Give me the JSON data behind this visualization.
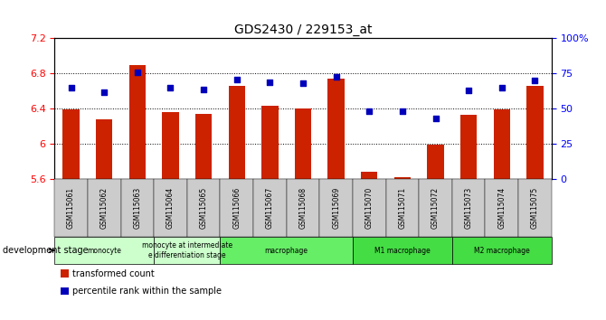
{
  "title": "GDS2430 / 229153_at",
  "samples": [
    "GSM115061",
    "GSM115062",
    "GSM115063",
    "GSM115064",
    "GSM115065",
    "GSM115066",
    "GSM115067",
    "GSM115068",
    "GSM115069",
    "GSM115070",
    "GSM115071",
    "GSM115072",
    "GSM115073",
    "GSM115074",
    "GSM115075"
  ],
  "bar_values": [
    6.39,
    6.28,
    6.9,
    6.36,
    6.34,
    6.66,
    6.43,
    6.4,
    6.74,
    5.68,
    5.62,
    5.99,
    6.33,
    6.39,
    6.66
  ],
  "dot_values": [
    65,
    62,
    76,
    65,
    64,
    71,
    69,
    68,
    73,
    48,
    48,
    43,
    63,
    65,
    70
  ],
  "ylim_left": [
    5.6,
    7.2
  ],
  "ylim_right": [
    0,
    100
  ],
  "yticks_left": [
    5.6,
    6.0,
    6.4,
    6.8,
    7.2
  ],
  "yticks_right": [
    0,
    25,
    50,
    75,
    100
  ],
  "ytick_labels_left": [
    "5.6",
    "6",
    "6.4",
    "6.8",
    "7.2"
  ],
  "ytick_labels_right": [
    "0",
    "25",
    "50",
    "75",
    "100%"
  ],
  "bar_color": "#cc2200",
  "dot_color": "#0000bb",
  "background_color": "#ffffff",
  "group_defs": [
    {
      "label": "monocyte",
      "start": 0,
      "end": 2,
      "color": "#ccffcc"
    },
    {
      "label": "monocyte at intermediate\ne differentiation stage",
      "start": 3,
      "end": 4,
      "color": "#ccffcc"
    },
    {
      "label": "macrophage",
      "start": 5,
      "end": 8,
      "color": "#66ee66"
    },
    {
      "label": "M1 macrophage",
      "start": 9,
      "end": 11,
      "color": "#44dd44"
    },
    {
      "label": "M2 macrophage",
      "start": 12,
      "end": 14,
      "color": "#44dd44"
    }
  ],
  "dev_stage_label": "development stage",
  "legend_items": [
    {
      "label": "transformed count",
      "color": "#cc2200"
    },
    {
      "label": "percentile rank within the sample",
      "color": "#0000bb"
    }
  ]
}
